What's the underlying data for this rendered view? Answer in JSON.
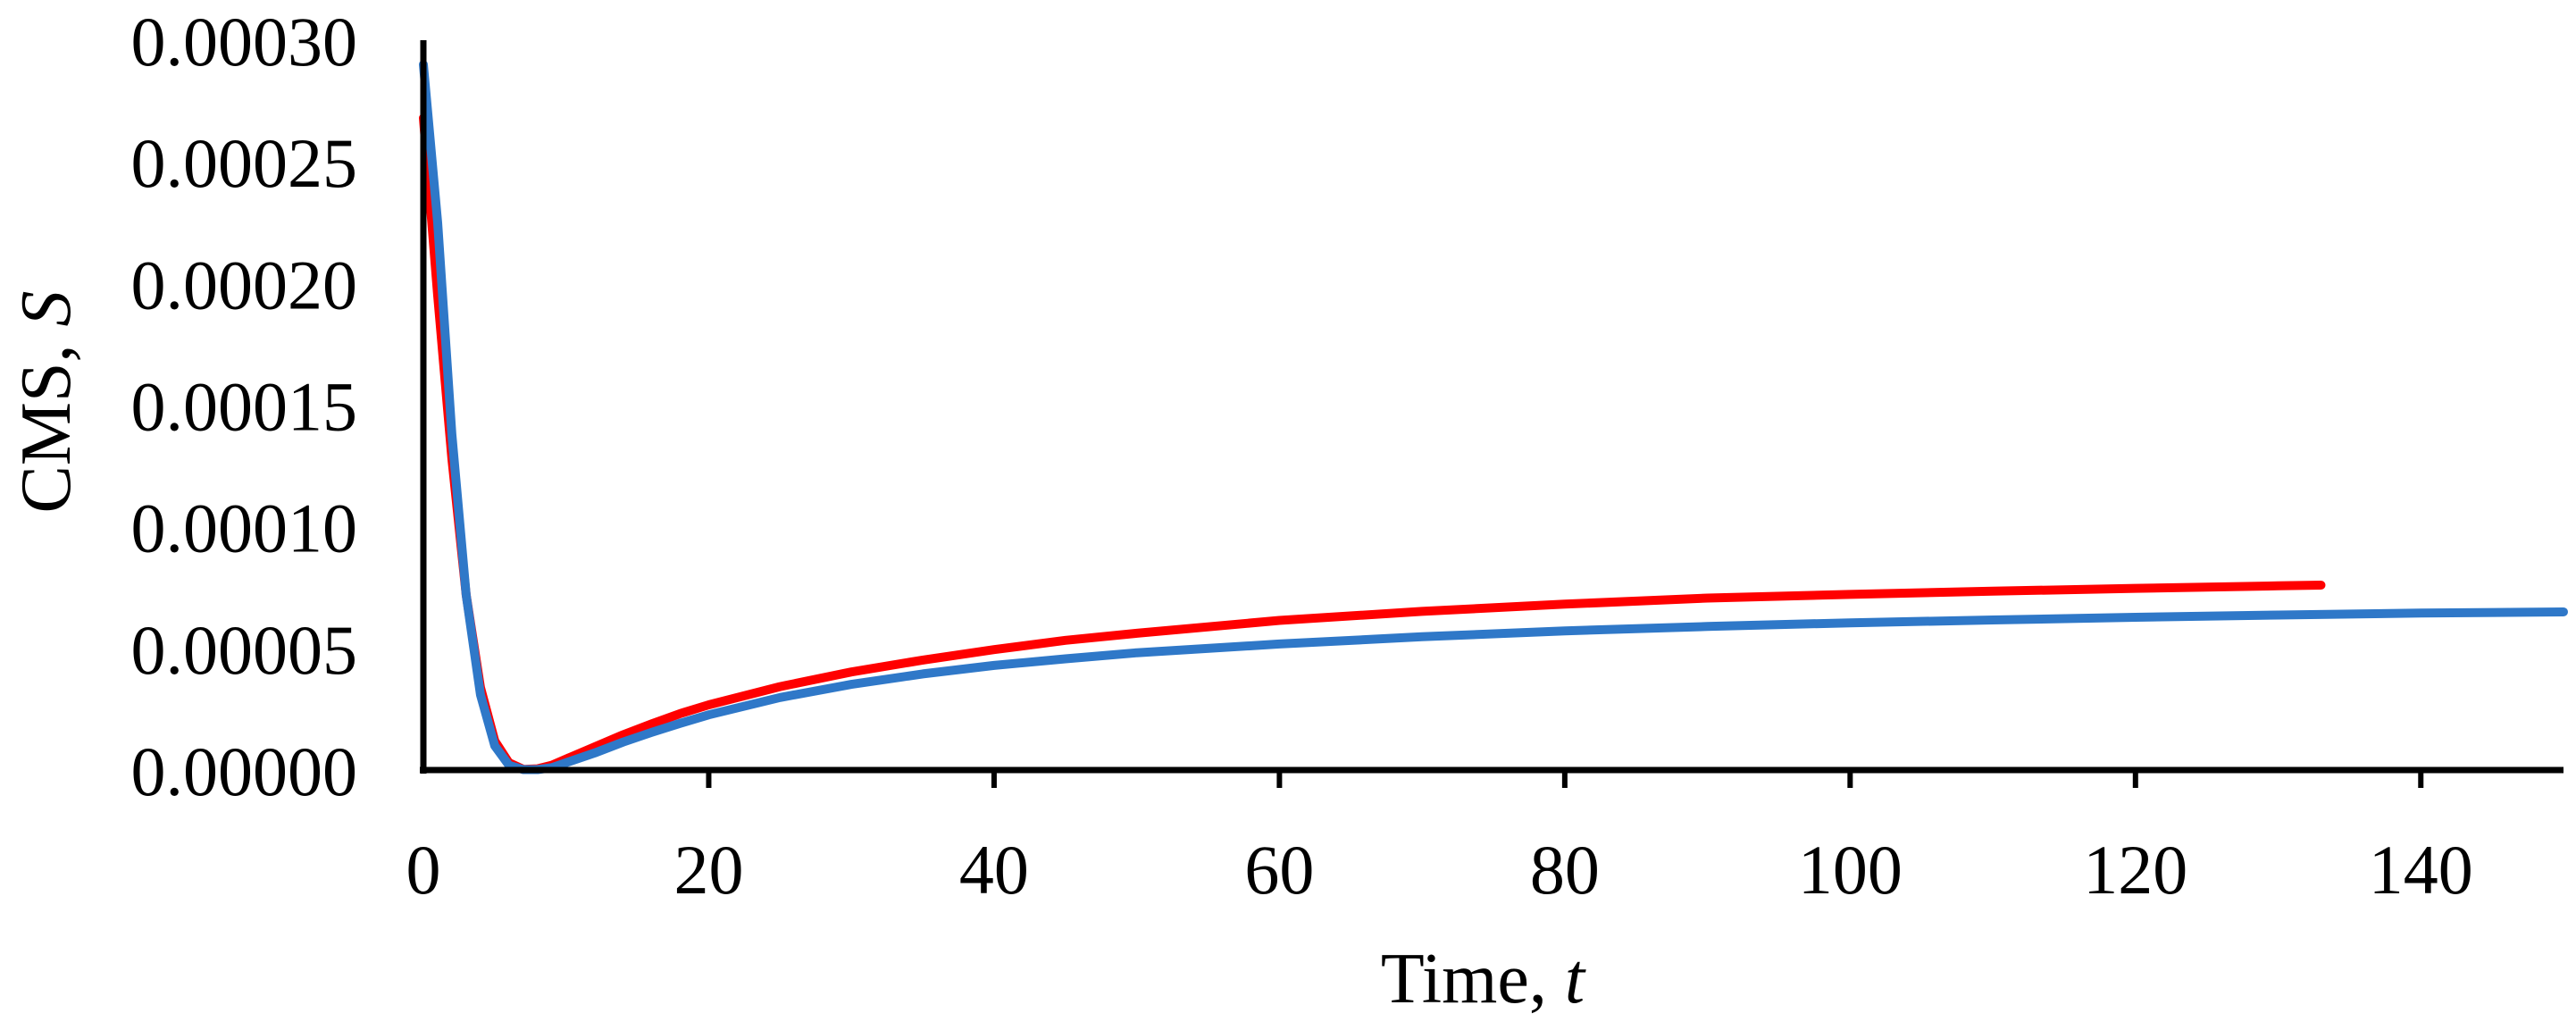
{
  "chart_data": {
    "type": "line",
    "title": "",
    "xlabel": "Time, ",
    "xlabel_var": "t",
    "ylabel": "CMS, ",
    "ylabel_var": "S",
    "xlim": [
      0,
      150
    ],
    "ylim": [
      0,
      0.0003
    ],
    "xticks": [
      0,
      20,
      40,
      60,
      80,
      100,
      120,
      140
    ],
    "xtick_labels": [
      "0",
      "20",
      "40",
      "60",
      "80",
      "100",
      "120",
      "140"
    ],
    "yticks": [
      0,
      5e-05,
      0.0001,
      0.00015,
      0.0002,
      0.00025,
      0.0003
    ],
    "ytick_labels": [
      "0.00000",
      "0.00005",
      "0.00010",
      "0.00015",
      "0.00020",
      "0.00025",
      "0.00030"
    ],
    "grid": false,
    "legend": "none",
    "series": [
      {
        "name": "red",
        "color": "#ff0000",
        "x": [
          0,
          1,
          2,
          3,
          4,
          5,
          6,
          7,
          8,
          9,
          10,
          12,
          14,
          16,
          18,
          20,
          25,
          30,
          35,
          40,
          45,
          50,
          60,
          70,
          80,
          90,
          100,
          110,
          120,
          130,
          133
        ],
        "y": [
          0.000268,
          0.000195,
          0.000128,
          7.2e-05,
          3.4e-05,
          1.2e-05,
          3e-06,
          3e-07,
          5e-07,
          2e-06,
          4.5e-06,
          9.5e-06,
          1.45e-05,
          1.9e-05,
          2.32e-05,
          2.68e-05,
          3.43e-05,
          4.03e-05,
          4.52e-05,
          4.95e-05,
          5.33e-05,
          5.62e-05,
          6.15e-05,
          6.52e-05,
          6.82e-05,
          7.07e-05,
          7.22e-05,
          7.35e-05,
          7.47e-05,
          7.57e-05,
          7.6e-05
        ]
      },
      {
        "name": "blue",
        "color": "#2f78c8",
        "x": [
          0,
          1,
          2,
          3,
          4,
          5,
          6,
          7,
          8,
          9,
          10,
          12,
          14,
          16,
          18,
          20,
          25,
          30,
          35,
          40,
          45,
          50,
          60,
          70,
          80,
          90,
          100,
          110,
          120,
          130,
          140,
          150
        ],
        "y": [
          0.00029,
          0.000225,
          0.000138,
          7.2e-05,
          3.1e-05,
          1e-05,
          2e-06,
          2e-07,
          2e-07,
          1e-06,
          3e-06,
          7e-06,
          1.15e-05,
          1.55e-05,
          1.92e-05,
          2.27e-05,
          2.98e-05,
          3.52e-05,
          3.95e-05,
          4.3e-05,
          4.57e-05,
          4.82e-05,
          5.18e-05,
          5.48e-05,
          5.72e-05,
          5.9e-05,
          6.05e-05,
          6.17e-05,
          6.28e-05,
          6.37e-05,
          6.45e-05,
          6.5e-05
        ]
      }
    ]
  }
}
